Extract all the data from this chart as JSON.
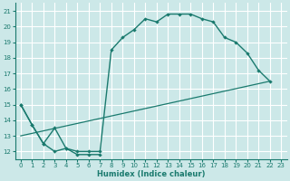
{
  "xlabel": "Humidex (Indice chaleur)",
  "bg_color": "#cce8e8",
  "grid_color": "#ffffff",
  "line_color": "#1a7a6e",
  "xlim": [
    -0.5,
    23.5
  ],
  "ylim": [
    11.5,
    21.5
  ],
  "xticks": [
    0,
    1,
    2,
    3,
    4,
    5,
    6,
    7,
    8,
    9,
    10,
    11,
    12,
    13,
    14,
    15,
    16,
    17,
    18,
    19,
    20,
    21,
    22,
    23
  ],
  "yticks": [
    12,
    13,
    14,
    15,
    16,
    17,
    18,
    19,
    20,
    21
  ],
  "line1_x": [
    0,
    1,
    2,
    3,
    4,
    5,
    6,
    7
  ],
  "line1_y": [
    15.0,
    13.7,
    12.5,
    12.0,
    12.2,
    11.8,
    11.8,
    11.8
  ],
  "line2_x": [
    0,
    22
  ],
  "line2_y": [
    13.0,
    16.5
  ],
  "line3_x": [
    0,
    1,
    2,
    3,
    4,
    5,
    6,
    7,
    8,
    9,
    10,
    11,
    12,
    13,
    14,
    15,
    16,
    17,
    18,
    19,
    20,
    21,
    22
  ],
  "line3_y": [
    15.0,
    13.7,
    12.5,
    13.5,
    12.2,
    12.0,
    12.0,
    12.0,
    18.5,
    19.3,
    19.8,
    20.5,
    20.3,
    20.8,
    20.8,
    20.8,
    20.5,
    20.3,
    19.3,
    19.0,
    18.3,
    17.2,
    16.5
  ]
}
